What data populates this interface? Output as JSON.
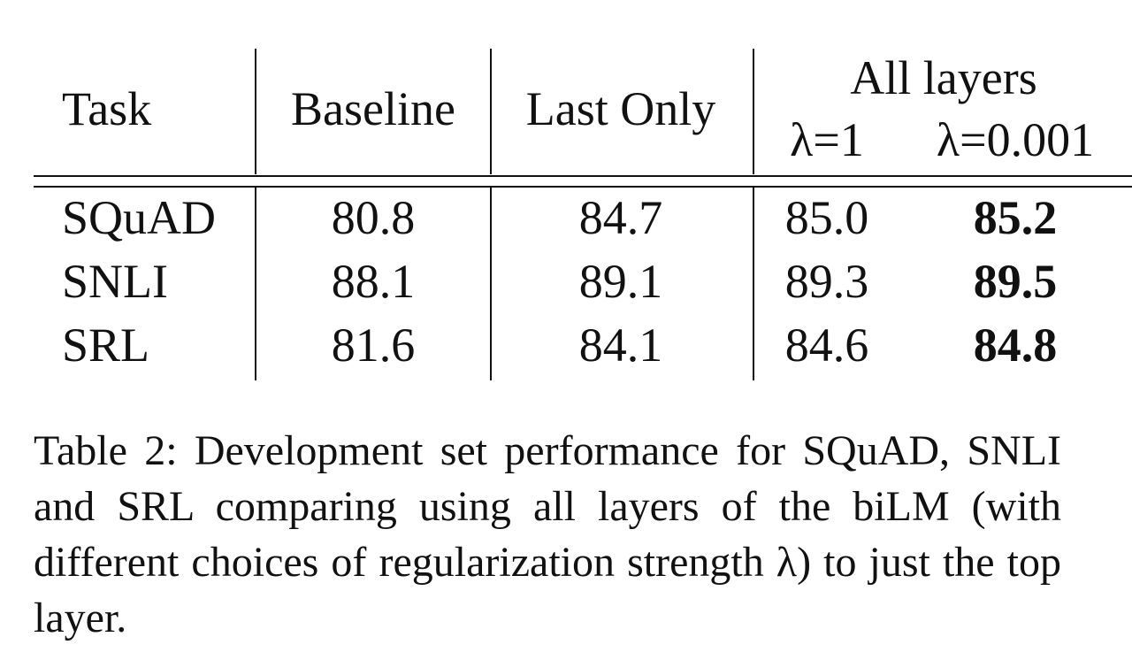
{
  "table": {
    "header": {
      "task": "Task",
      "baseline": "Baseline",
      "last_only": "Last Only",
      "all_layers": "All layers",
      "lambda_1": "λ=1",
      "lambda_0001": "λ=0.001"
    },
    "rows": [
      [
        "SQuAD",
        "80.8",
        "84.7",
        "85.0",
        "85.2"
      ],
      [
        "SNLI",
        "88.1",
        "89.1",
        "89.3",
        "89.5"
      ],
      [
        "SRL",
        "81.6",
        "84.1",
        "84.6",
        "84.8"
      ]
    ]
  },
  "caption": "Table 2: Development set performance for SQuAD, SNLI and SRL comparing using all layers of the biLM (with different choices of regularization strength λ) to just the top layer."
}
